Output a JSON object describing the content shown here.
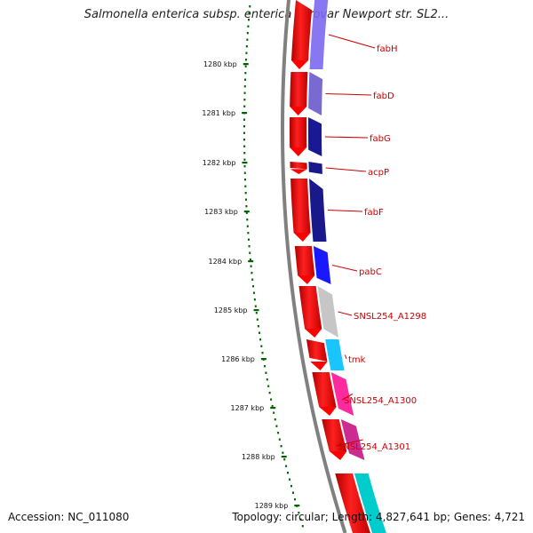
{
  "title": "Salmonella enterica subsp. enterica serovar Newport str. SL2...",
  "footer": {
    "accession": "Accession: NC_011080",
    "topology": "Topology: circular; Length: 4,827,641 bp; Genes: 4,721"
  },
  "ticks": [
    {
      "label": "1280 kbp"
    },
    {
      "label": "1281 kbp"
    },
    {
      "label": "1282 kbp"
    },
    {
      "label": "1283 kbp"
    },
    {
      "label": "1284 kbp"
    },
    {
      "label": "1285 kbp"
    },
    {
      "label": "1286 kbp"
    },
    {
      "label": "1287 kbp"
    },
    {
      "label": "1288 kbp"
    },
    {
      "label": "1289 kbp"
    }
  ],
  "genes": [
    {
      "label": "fabH",
      "color": "#7b68ee"
    },
    {
      "label": "fabD",
      "color": "#6a5acd"
    },
    {
      "label": "fabG",
      "color": "#00008b"
    },
    {
      "label": "acpP",
      "color": "#000080"
    },
    {
      "label": "fabF",
      "color": "#000080"
    },
    {
      "label": "pabC",
      "color": "#0000ff"
    },
    {
      "label": "SNSL254_A1298",
      "color": "#c0c0c0"
    },
    {
      "label": "tmk",
      "color": "#00bfff"
    },
    {
      "label": "SNSL254_A1300",
      "color": "#ff1493"
    },
    {
      "label": "SNSL254_A1301",
      "color": "#c71585"
    }
  ],
  "colors": {
    "cds": "#ff0000",
    "backbone": "#808080",
    "tick": "#006400",
    "label": "#cc0000",
    "cyan": "#00cccc"
  }
}
